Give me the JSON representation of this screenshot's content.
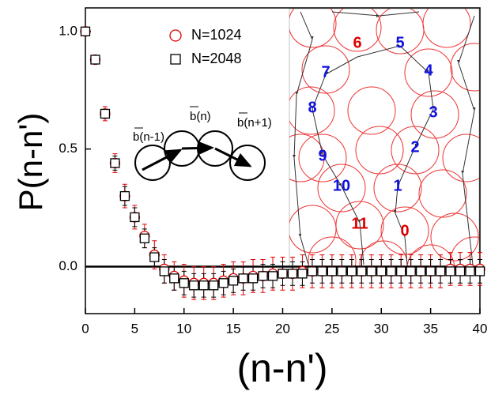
{
  "chart_data": {
    "type": "scatter",
    "x_label": "(n-n')",
    "y_label": "P(n-n')",
    "xlim": [
      0,
      40
    ],
    "xticks": [
      0,
      5,
      10,
      15,
      20,
      25,
      30,
      35,
      40
    ],
    "ylim": [
      -0.2,
      1.1
    ],
    "yticks": [
      {
        "value": 0,
        "label": "0.0"
      },
      {
        "value": 0.5,
        "label": "0.5"
      },
      {
        "value": 1,
        "label": "1.0"
      }
    ],
    "x": [
      0,
      1,
      2,
      3,
      4,
      5,
      6,
      7,
      8,
      9,
      10,
      11,
      12,
      13,
      14,
      15,
      16,
      17,
      18,
      19,
      20,
      21,
      22,
      23,
      24,
      25,
      26,
      27,
      28,
      29,
      30,
      31,
      32,
      33,
      34,
      35,
      36,
      37,
      38,
      39,
      40
    ],
    "series": [
      {
        "name": "N=1024",
        "color": "#e00000",
        "marker": "circle",
        "values": [
          1.0,
          0.88,
          0.65,
          0.44,
          0.3,
          0.21,
          0.13,
          0.05,
          -0.01,
          -0.04,
          -0.06,
          -0.07,
          -0.07,
          -0.07,
          -0.06,
          -0.05,
          -0.05,
          -0.04,
          -0.04,
          -0.03,
          -0.03,
          -0.03,
          -0.02,
          -0.02,
          -0.02,
          -0.02,
          -0.02,
          -0.02,
          -0.02,
          -0.02,
          -0.02,
          -0.02,
          -0.02,
          -0.02,
          -0.02,
          -0.02,
          -0.02,
          -0.01,
          -0.01,
          -0.01,
          -0.01
        ],
        "errors": [
          0.01,
          0.01,
          0.03,
          0.04,
          0.05,
          0.05,
          0.05,
          0.06,
          0.06,
          0.06,
          0.07,
          0.07,
          0.07,
          0.07,
          0.07,
          0.07,
          0.07,
          0.07,
          0.07,
          0.07,
          0.07,
          0.07,
          0.07,
          0.07,
          0.07,
          0.07,
          0.07,
          0.07,
          0.07,
          0.07,
          0.07,
          0.07,
          0.07,
          0.07,
          0.07,
          0.07,
          0.07,
          0.07,
          0.07,
          0.07,
          0.07
        ]
      },
      {
        "name": "N=2048",
        "color": "#000000",
        "marker": "square",
        "values": [
          1.0,
          0.88,
          0.65,
          0.44,
          0.3,
          0.21,
          0.12,
          0.04,
          -0.02,
          -0.05,
          -0.07,
          -0.08,
          -0.08,
          -0.08,
          -0.07,
          -0.06,
          -0.05,
          -0.05,
          -0.04,
          -0.04,
          -0.03,
          -0.03,
          -0.03,
          -0.02,
          -0.02,
          -0.02,
          -0.02,
          -0.02,
          -0.02,
          -0.02,
          -0.02,
          -0.02,
          -0.02,
          -0.02,
          -0.02,
          -0.02,
          -0.02,
          -0.02,
          -0.02,
          -0.02,
          -0.02
        ],
        "errors": [
          0.01,
          0.01,
          0.02,
          0.03,
          0.04,
          0.04,
          0.04,
          0.04,
          0.05,
          0.05,
          0.05,
          0.05,
          0.05,
          0.05,
          0.05,
          0.05,
          0.05,
          0.05,
          0.05,
          0.05,
          0.05,
          0.05,
          0.05,
          0.05,
          0.05,
          0.05,
          0.05,
          0.05,
          0.05,
          0.05,
          0.05,
          0.05,
          0.05,
          0.05,
          0.05,
          0.05,
          0.05,
          0.05,
          0.05,
          0.05,
          0.05
        ]
      }
    ],
    "inset_vector_labels": [
      "b(n-1)",
      "b(n)",
      "b(n+1)"
    ],
    "bead_labels": [
      {
        "text": "6",
        "color": "#e00000"
      },
      {
        "text": "5",
        "color": "#1010e0"
      },
      {
        "text": "7",
        "color": "#1010e0"
      },
      {
        "text": "4",
        "color": "#1010e0"
      },
      {
        "text": "8",
        "color": "#1010e0"
      },
      {
        "text": "3",
        "color": "#1010e0"
      },
      {
        "text": "2",
        "color": "#1010e0"
      },
      {
        "text": "9",
        "color": "#1010e0"
      },
      {
        "text": "10",
        "color": "#1010e0"
      },
      {
        "text": "1",
        "color": "#1010e0"
      },
      {
        "text": "11",
        "color": "#e00000"
      },
      {
        "text": "0",
        "color": "#e00000"
      }
    ]
  }
}
